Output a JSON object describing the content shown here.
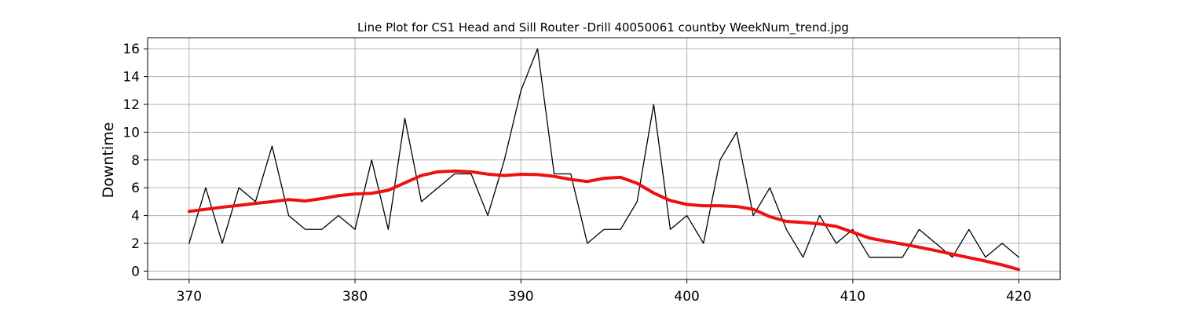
{
  "chart_data": {
    "type": "line",
    "title": "Line Plot for CS1 Head and Sill Router -Drill 40050061 countby WeekNum_trend.jpg",
    "xlabel": "",
    "ylabel": "Downtime",
    "xlim": [
      367.5,
      422.5
    ],
    "ylim": [
      -0.6,
      16.8
    ],
    "xticks": [
      370,
      380,
      390,
      400,
      410,
      420
    ],
    "yticks": [
      0,
      2,
      4,
      6,
      8,
      10,
      12,
      14,
      16
    ],
    "grid": true,
    "x": [
      370,
      371,
      372,
      373,
      374,
      375,
      376,
      377,
      378,
      379,
      380,
      381,
      382,
      383,
      384,
      385,
      386,
      387,
      388,
      389,
      390,
      391,
      392,
      393,
      394,
      395,
      396,
      397,
      398,
      399,
      400,
      401,
      402,
      403,
      404,
      405,
      406,
      407,
      408,
      409,
      410,
      411,
      412,
      413,
      414,
      415,
      416,
      417,
      418,
      419,
      420
    ],
    "series": [
      {
        "color": "#000000",
        "values": [
          2,
          6,
          2,
          6,
          5,
          9,
          4,
          3,
          3,
          4,
          3,
          8,
          3,
          11,
          5,
          6,
          7,
          7,
          4,
          8,
          13,
          16,
          7,
          7,
          2,
          3,
          3,
          5,
          12,
          3,
          4,
          2,
          8,
          10,
          4,
          6,
          3,
          1,
          4,
          2,
          3,
          1,
          1,
          1,
          3,
          2,
          1,
          3,
          1,
          2,
          1
        ]
      },
      {
        "color": "#ee1111",
        "values": [
          4.3,
          4.45,
          4.6,
          4.73,
          4.87,
          5.0,
          5.15,
          5.05,
          5.22,
          5.43,
          5.55,
          5.6,
          5.82,
          6.35,
          6.88,
          7.15,
          7.2,
          7.15,
          6.98,
          6.88,
          6.97,
          6.95,
          6.82,
          6.6,
          6.45,
          6.68,
          6.75,
          6.32,
          5.62,
          5.08,
          4.8,
          4.7,
          4.7,
          4.65,
          4.45,
          3.92,
          3.58,
          3.5,
          3.4,
          3.22,
          2.8,
          2.38,
          2.15,
          1.95,
          1.72,
          1.48,
          1.22,
          0.97,
          0.72,
          0.45,
          0.12
        ]
      }
    ]
  }
}
